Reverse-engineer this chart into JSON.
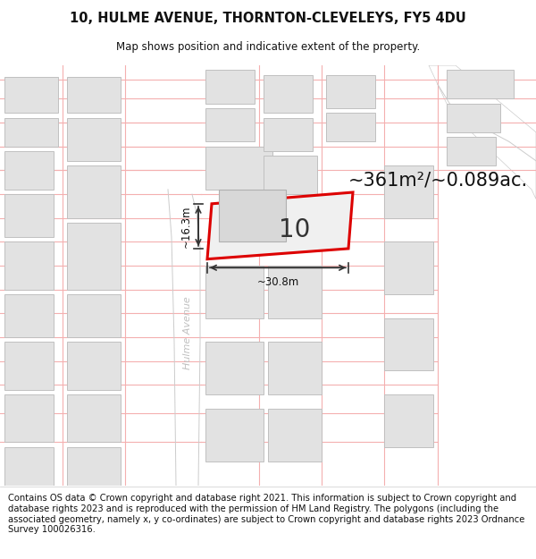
{
  "title_line1": "10, HULME AVENUE, THORNTON-CLEVELEYS, FY5 4DU",
  "title_line2": "Map shows position and indicative extent of the property.",
  "area_text": "~361m²/~0.089ac.",
  "number_label": "10",
  "width_label": "~30.8m",
  "height_label": "~16.3m",
  "street_label": "Hulme Avenue",
  "footer_text": "Contains OS data © Crown copyright and database right 2021. This information is subject to Crown copyright and database rights 2023 and is reproduced with the permission of HM Land Registry. The polygons (including the associated geometry, namely x, y co-ordinates) are subject to Crown copyright and database rights 2023 Ordnance Survey 100026316.",
  "bg_color": "#f5f5f5",
  "road_color": "#ffffff",
  "building_fill": "#e2e2e2",
  "building_edge": "#c0c0c0",
  "plot_outline_color": "#dd0000",
  "red_line_color": "#f4b0b0",
  "arrow_color": "#333333",
  "title_fontsize": 10.5,
  "subtitle_fontsize": 8.5,
  "area_fontsize": 15,
  "number_fontsize": 20,
  "label_fontsize": 8.5,
  "footer_fontsize": 7.2,
  "street_label_color": "#c0c0c0"
}
